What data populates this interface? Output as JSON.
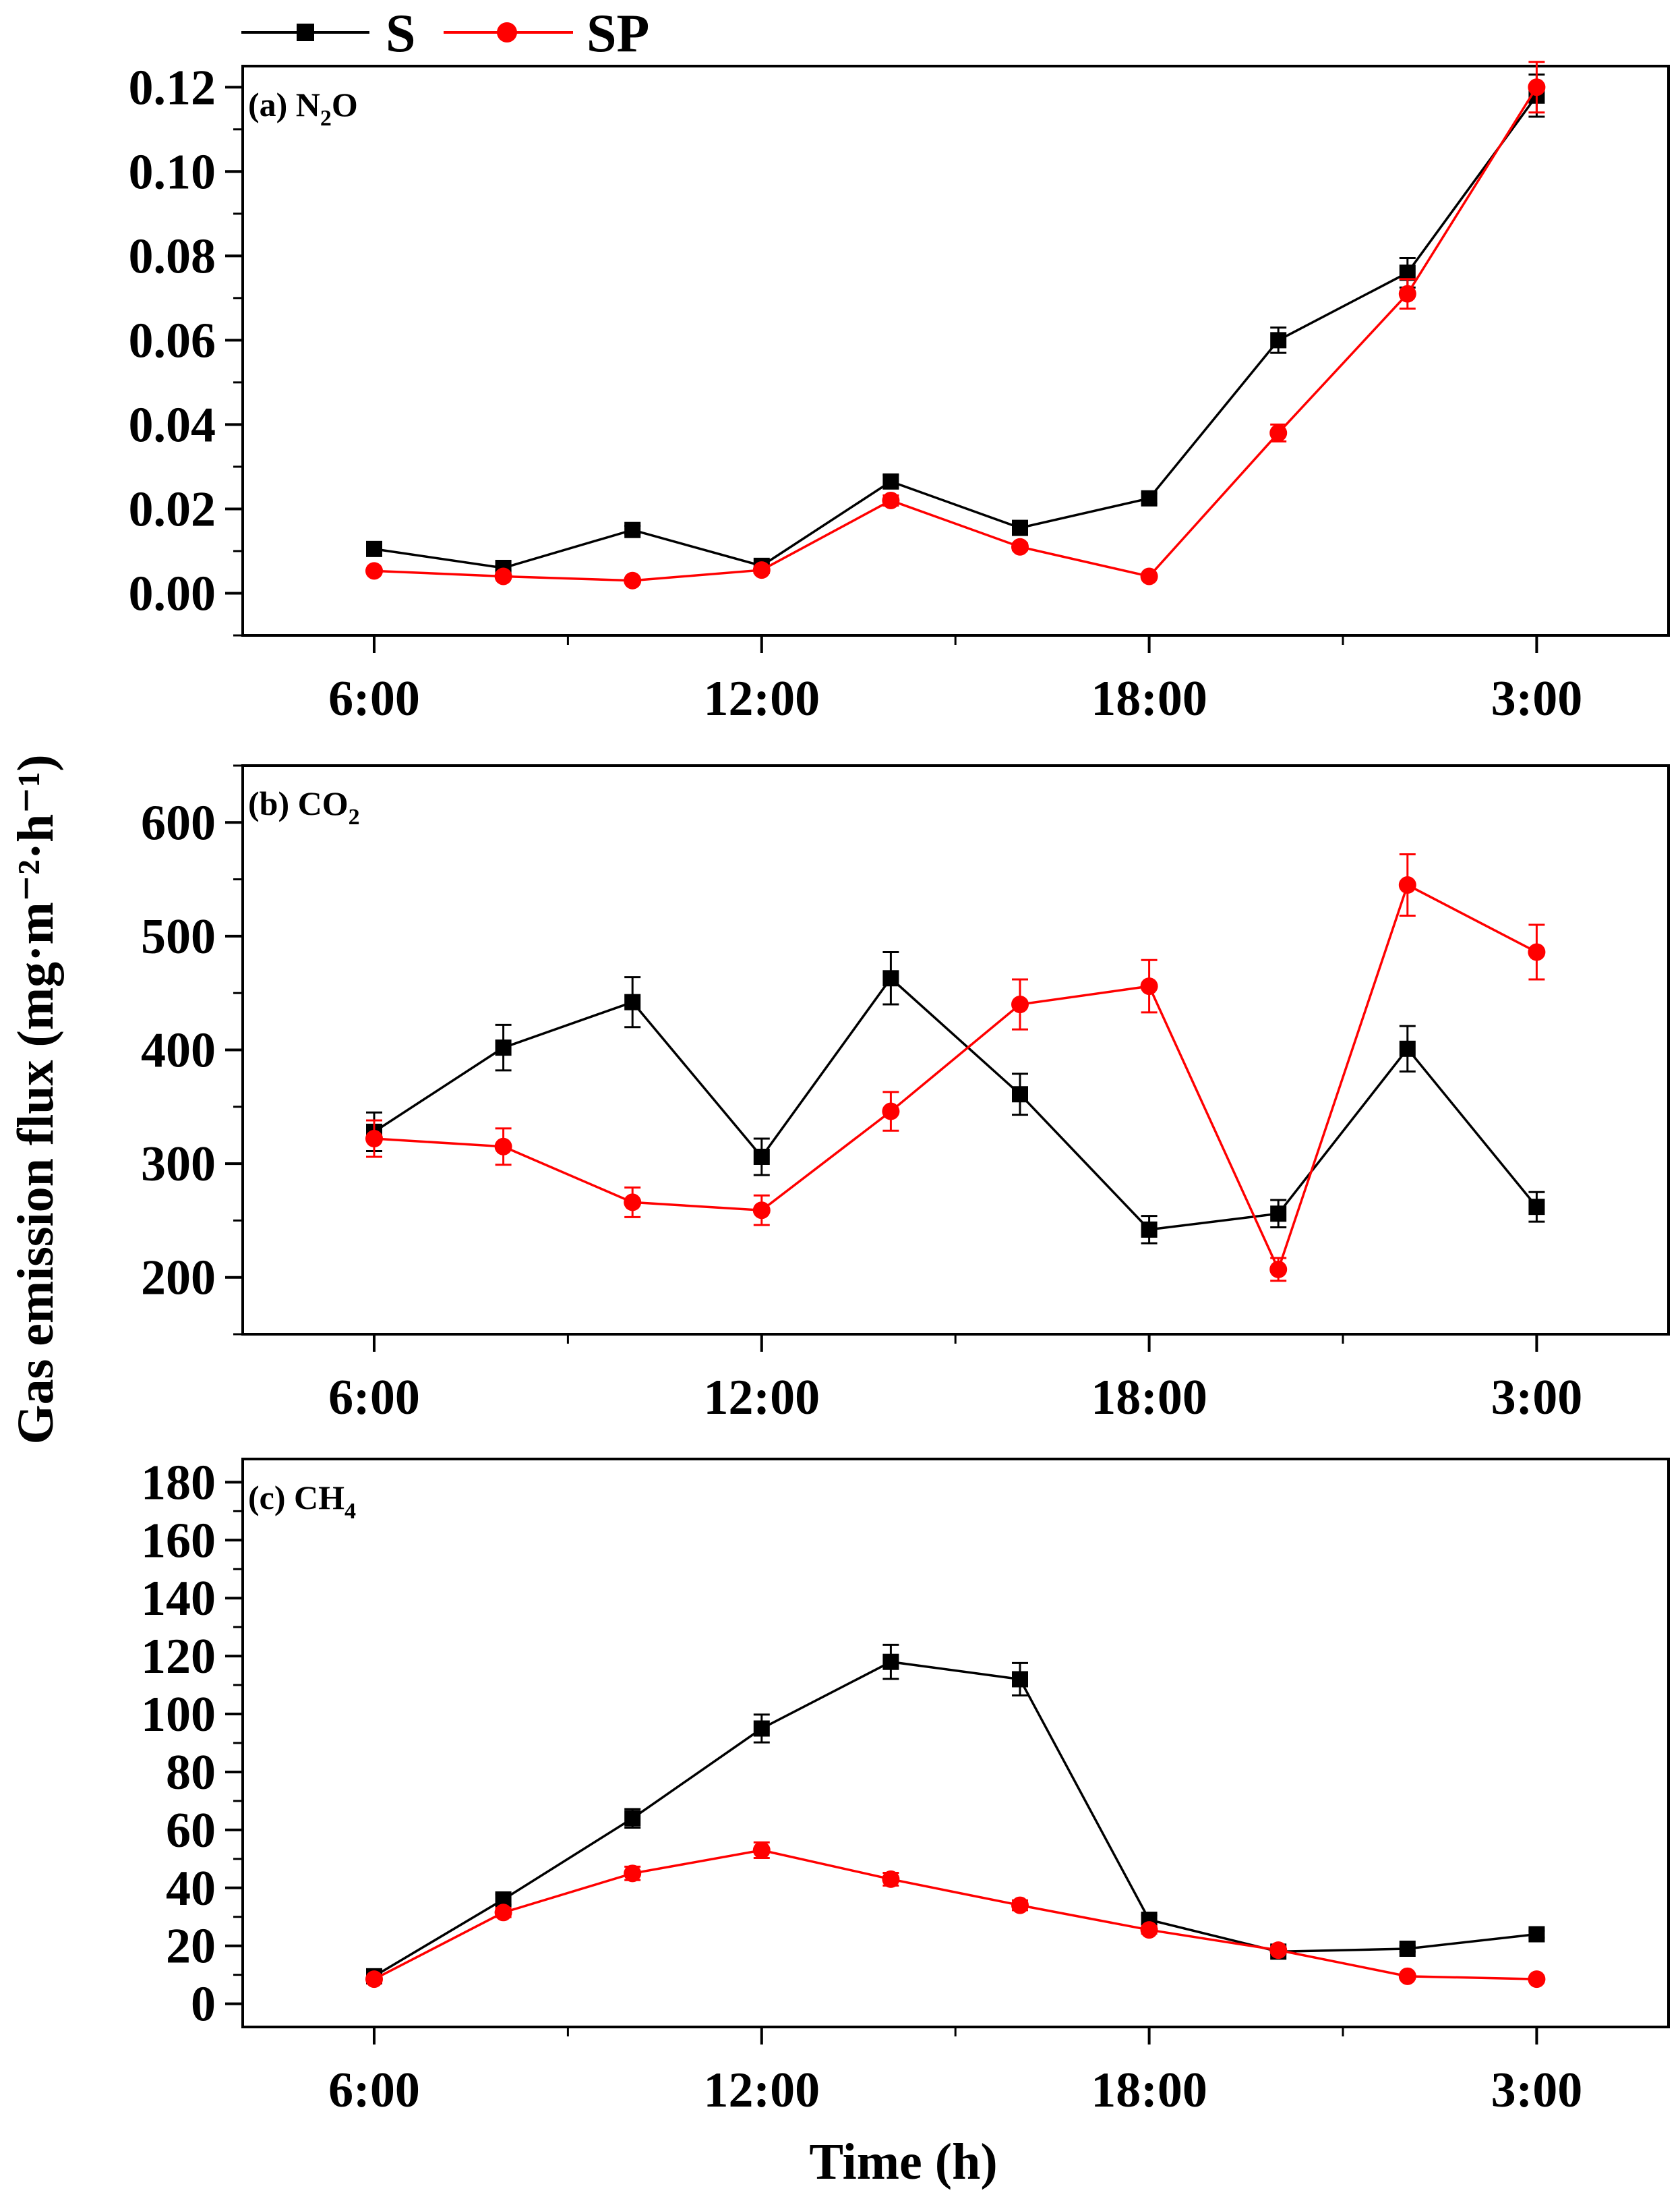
{
  "legend": [
    {
      "name": "S",
      "color": "#000000",
      "marker": "square"
    },
    {
      "name": "SP",
      "color": "#ff0000",
      "marker": "circle"
    }
  ],
  "xlabel": "Time (h)",
  "ylabel": "Gas emission flux (mg·m⁻²·h⁻¹)",
  "chart_data": [
    {
      "type": "line",
      "label": "(a) N",
      "label_sub": "2",
      "label_tail": "O",
      "x": [
        0,
        1,
        2,
        3,
        4,
        5,
        6,
        7,
        8,
        9
      ],
      "x_ticks": [
        "6:00",
        "12:00",
        "18:00",
        "3:00"
      ],
      "x_tick_positions": [
        0,
        3,
        6,
        9
      ],
      "ylim": [
        -0.01,
        0.125
      ],
      "y_ticks": [
        "0.00",
        "0.02",
        "0.04",
        "0.06",
        "0.08",
        "0.10",
        "0.12"
      ],
      "y_tick_values": [
        0,
        0.02,
        0.04,
        0.06,
        0.08,
        0.1,
        0.12
      ],
      "series": [
        {
          "name": "S",
          "values": [
            0.0105,
            0.006,
            0.015,
            0.0065,
            0.0265,
            0.0155,
            0.0225,
            0.06,
            0.076,
            0.118
          ],
          "errors": [
            0.0008,
            0.0006,
            0.001,
            0.0006,
            0.0015,
            0.001,
            0.0012,
            0.003,
            0.0035,
            0.005
          ]
        },
        {
          "name": "SP",
          "values": [
            0.0053,
            0.004,
            0.003,
            0.0055,
            0.022,
            0.011,
            0.004,
            0.038,
            0.071,
            0.12
          ],
          "errors": [
            0.0005,
            0.0004,
            0.0004,
            0.0005,
            0.0012,
            0.0008,
            0.0005,
            0.002,
            0.0035,
            0.006
          ]
        }
      ]
    },
    {
      "type": "line",
      "label": "(b) CO",
      "label_sub": "2",
      "label_tail": "",
      "x": [
        0,
        1,
        2,
        3,
        4,
        5,
        6,
        7,
        8,
        9
      ],
      "x_ticks": [
        "6:00",
        "12:00",
        "18:00",
        "3:00"
      ],
      "x_tick_positions": [
        0,
        3,
        6,
        9
      ],
      "ylim": [
        150,
        650
      ],
      "y_ticks": [
        "200",
        "300",
        "400",
        "500",
        "600"
      ],
      "y_tick_values": [
        200,
        300,
        400,
        500,
        600
      ],
      "series": [
        {
          "name": "S",
          "values": [
            328,
            402,
            442,
            306,
            463,
            361,
            242,
            256,
            401,
            262
          ],
          "errors": [
            17,
            20,
            22,
            16,
            23,
            18,
            12,
            12,
            20,
            13
          ]
        },
        {
          "name": "SP",
          "values": [
            322,
            315,
            266,
            259,
            346,
            440,
            456,
            207,
            545,
            486
          ],
          "errors": [
            16,
            16,
            13,
            13,
            17,
            22,
            23,
            10,
            27,
            24
          ]
        }
      ]
    },
    {
      "type": "line",
      "label": "(c) CH",
      "label_sub": "4",
      "label_tail": "",
      "x": [
        0,
        1,
        2,
        3,
        4,
        5,
        6,
        7,
        8,
        9
      ],
      "x_ticks": [
        "6:00",
        "12:00",
        "18:00",
        "3:00"
      ],
      "x_tick_positions": [
        0,
        3,
        6,
        9
      ],
      "ylim": [
        -8,
        188
      ],
      "y_ticks": [
        "0",
        "20",
        "40",
        "60",
        "80",
        "100",
        "120",
        "140",
        "160",
        "180"
      ],
      "y_tick_values": [
        0,
        20,
        40,
        60,
        80,
        100,
        120,
        140,
        160,
        180
      ],
      "series": [
        {
          "name": "S",
          "values": [
            9.5,
            36,
            64,
            95,
            118,
            112,
            29,
            18,
            19,
            24
          ],
          "errors": [
            0.8,
            1.8,
            3.2,
            4.8,
            5.9,
            5.6,
            1.5,
            0.9,
            1,
            1.2
          ]
        },
        {
          "name": "SP",
          "values": [
            8.5,
            31.5,
            45,
            53,
            43,
            34,
            25.5,
            18.5,
            9.5,
            8.5
          ],
          "errors": [
            0.7,
            1.6,
            2.3,
            2.7,
            2.2,
            1.7,
            1.3,
            0.9,
            0.5,
            0.4
          ]
        }
      ]
    }
  ]
}
